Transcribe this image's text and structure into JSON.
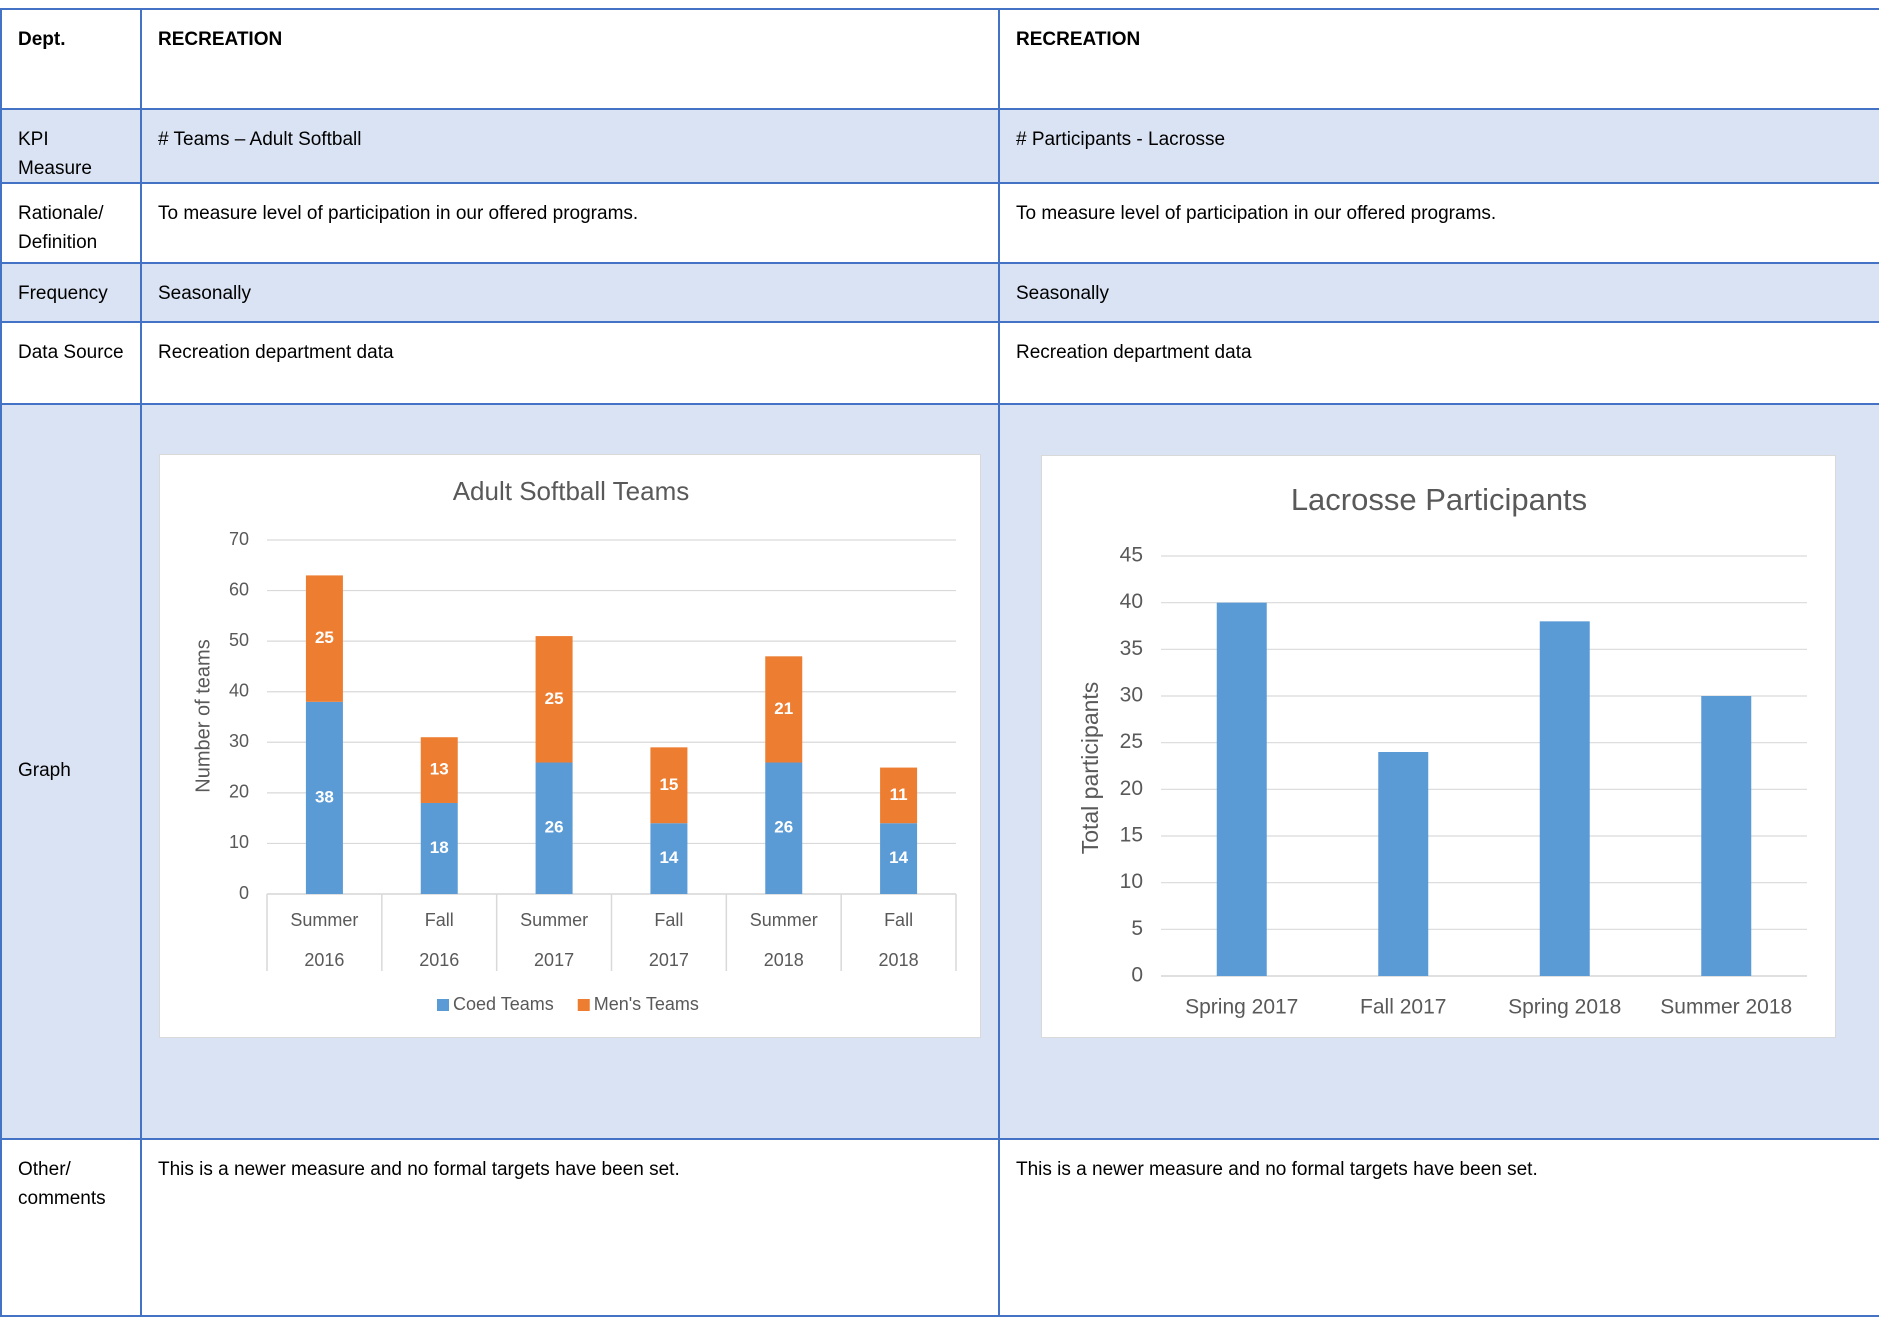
{
  "table": {
    "rows": [
      {
        "label": "Dept.",
        "cells": [
          "RECREATION",
          "RECREATION"
        ]
      },
      {
        "label": "KPI Measure",
        "cells": [
          "# Teams – Adult Softball",
          "# Participants - Lacrosse"
        ]
      },
      {
        "label": "Rationale/ Definition",
        "cells": [
          "To measure level of participation in our offered programs.",
          "To measure level of participation in our offered programs."
        ]
      },
      {
        "label": "Frequency",
        "cells": [
          "Seasonally",
          "Seasonally"
        ]
      },
      {
        "label": "Data Source",
        "cells": [
          "Recreation department data",
          "Recreation department data"
        ]
      },
      {
        "label": "Graph"
      },
      {
        "label": "Other/ comments",
        "cells": [
          "This is a newer measure and no formal targets have been set.",
          "This is a newer measure and no formal targets have been set."
        ]
      }
    ]
  },
  "chart_data": [
    {
      "type": "stacked_bar",
      "title": "Adult Softball Teams",
      "y_label": "Number of teams",
      "categories": [
        [
          "Summer",
          "2016"
        ],
        [
          "Fall",
          "2016"
        ],
        [
          "Summer",
          "2017"
        ],
        [
          "Fall",
          "2017"
        ],
        [
          "Summer",
          "2018"
        ],
        [
          "Fall",
          "2018"
        ]
      ],
      "series": [
        {
          "name": "Coed Teams",
          "color": "#5b9bd5",
          "values": [
            38,
            18,
            26,
            14,
            26,
            14
          ]
        },
        {
          "name": "Men's Teams",
          "color": "#ed7d31",
          "values": [
            25,
            13,
            25,
            15,
            21,
            11
          ]
        }
      ],
      "ylim": [
        0,
        70
      ],
      "yticks": [
        0,
        10,
        20,
        30,
        40,
        50,
        60,
        70
      ],
      "grid": true,
      "legend": "bottom"
    },
    {
      "type": "bar",
      "title": "Lacrosse Participants",
      "y_label": "Total participants",
      "categories": [
        "Spring 2017",
        "Fall 2017",
        "Spring 2018",
        "Summer 2018"
      ],
      "values": [
        40,
        24,
        38,
        30
      ],
      "color": "#5b9bd5",
      "ylim": [
        0,
        45
      ],
      "yticks": [
        0,
        5,
        10,
        15,
        20,
        25,
        30,
        35,
        40,
        45
      ],
      "grid": true
    }
  ]
}
